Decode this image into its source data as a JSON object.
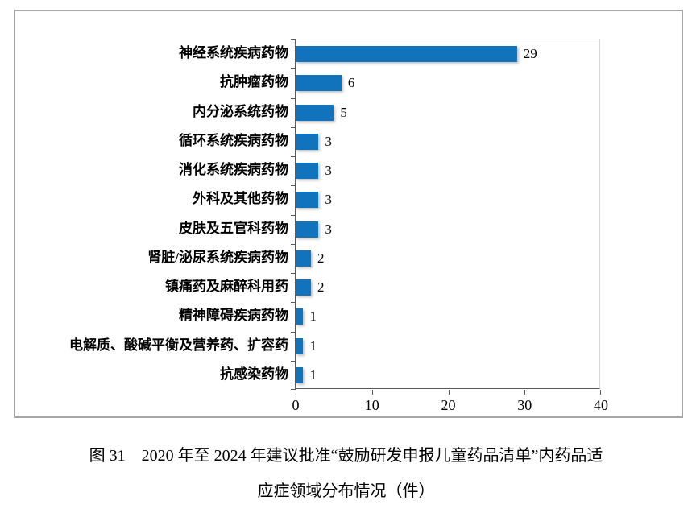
{
  "chart_data": {
    "type": "bar",
    "orientation": "horizontal",
    "title": "",
    "xlabel": "",
    "ylabel": "",
    "categories": [
      "神经系统疾病药物",
      "抗肿瘤药物",
      "内分泌系统药物",
      "循环系统疾病药物",
      "消化系统疾病药物",
      "外科及其他药物",
      "皮肤及五官科药物",
      "肾脏/泌尿系统疾病药物",
      "镇痛药及麻醉科用药",
      "精神障碍疾病药物",
      "电解质、酸碱平衡及营养药、扩容药",
      "抗感染药物"
    ],
    "values": [
      29,
      6,
      5,
      3,
      3,
      3,
      3,
      2,
      2,
      1,
      1,
      1
    ],
    "xlim": [
      0,
      40
    ],
    "x_ticks": [
      0,
      10,
      20,
      30,
      40
    ],
    "grid": false,
    "legend": false,
    "value_labels_shown": true,
    "bar_color": "#1173bc",
    "frame_border_color": "#a6a6a6",
    "axis_color": "#595959"
  },
  "caption": {
    "line1": "图 31　2020 年至 2024 年建议批准“鼓励研发申报儿童药品清单”内药品适",
    "line2": "应症领域分布情况（件）"
  }
}
